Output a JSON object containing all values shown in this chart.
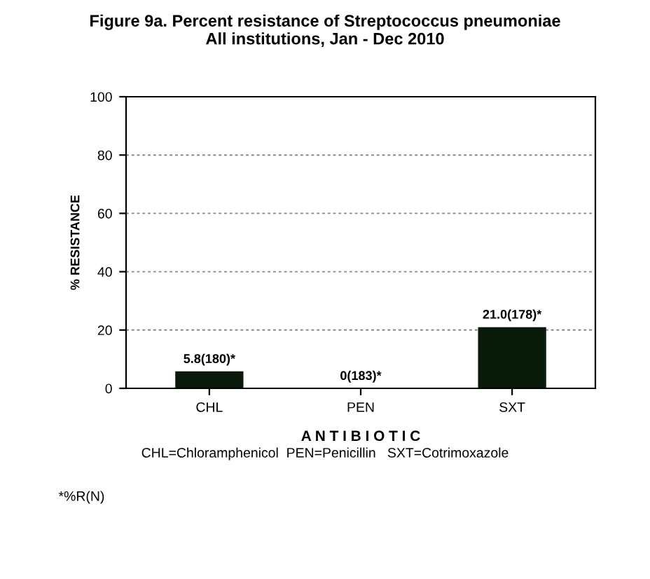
{
  "chart_data": {
    "type": "bar",
    "title": "Figure 9a. Percent resistance of Streptococcus pneumoniae\nAll institutions, Jan - Dec 2010",
    "xlabel": "A N T I B I O T I C",
    "ylabel": "% RESISTANCE",
    "categories": [
      "CHL",
      "PEN",
      "SXT"
    ],
    "values": [
      5.8,
      0,
      21.0
    ],
    "value_labels": [
      "5.8(180)*",
      "0(183)*",
      "21.0(178)*"
    ],
    "color": "#0a1a0a",
    "ylim": [
      0,
      100
    ],
    "yticks": [
      0,
      20,
      40,
      60,
      80,
      100
    ],
    "grid": "y",
    "annotations": [
      "CHL=Chloramphenicol  PEN=Penicillin   SXT=Cotrimoxazole",
      "*%R(N)"
    ]
  }
}
